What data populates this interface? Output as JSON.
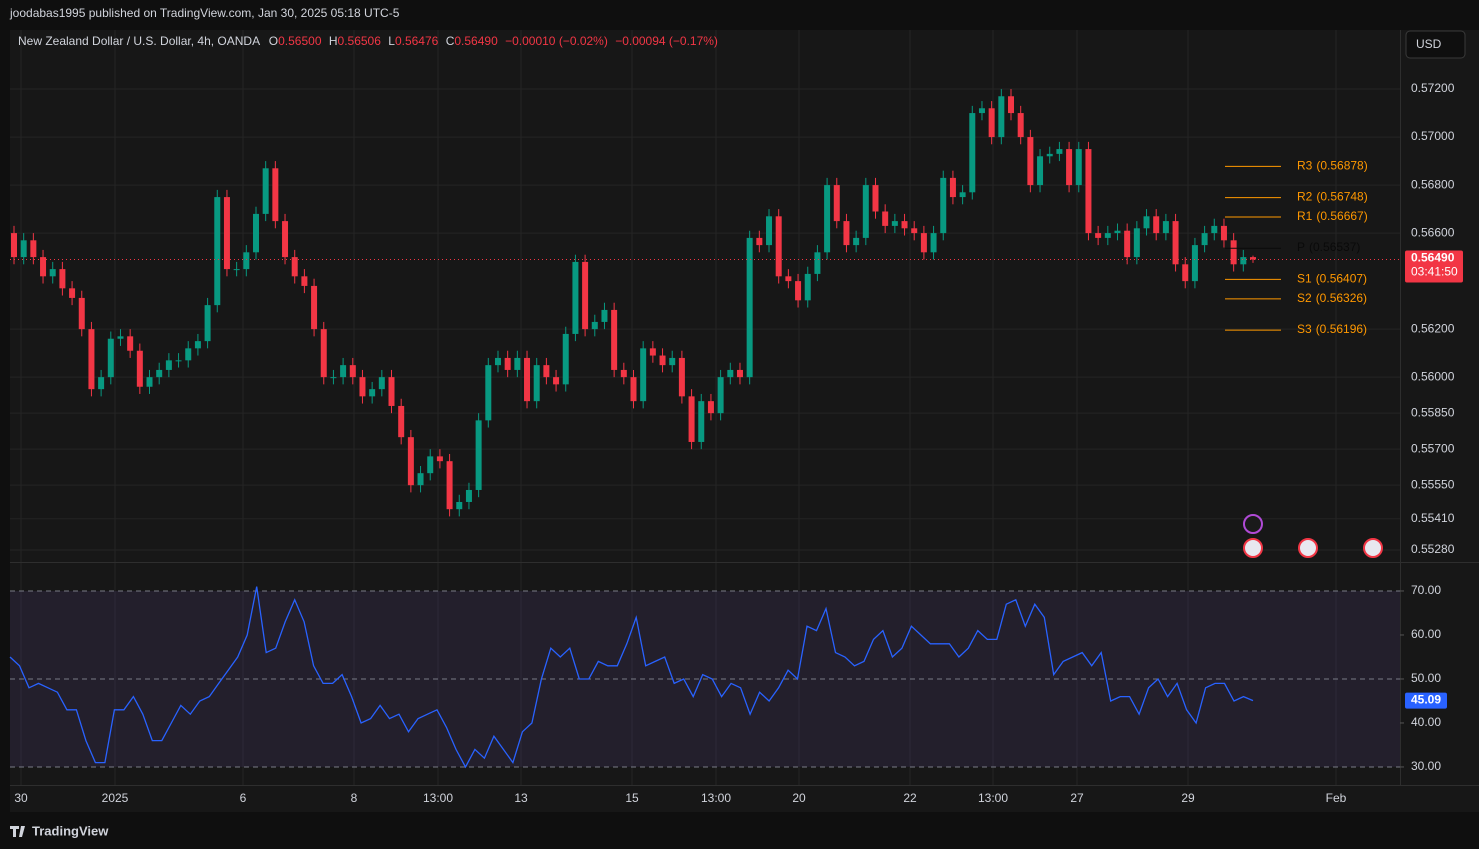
{
  "header": {
    "publisher": "joodabas1995 published on TradingView.com, Jan 30, 2025 05:18 UTC-5",
    "symbol": "New Zealand Dollar / U.S. Dollar, 4h, OANDA",
    "ohlc": [
      {
        "key": "O",
        "value": "0.56500"
      },
      {
        "key": "H",
        "value": "0.56506"
      },
      {
        "key": "L",
        "value": "0.56476"
      },
      {
        "key": "C",
        "value": "0.56490"
      }
    ],
    "change": "−0.00010 (−0.02%)",
    "change_total": "−0.00094 (−0.17%)"
  },
  "currency": "USD",
  "footer": "TradingView",
  "chart_data": [
    {
      "type": "candlestick",
      "up_color": "#089981",
      "down_color": "#f23645",
      "grid": true,
      "x_labels": [
        "30",
        "2025",
        "6",
        "8",
        "13:00",
        "13",
        "15",
        "13:00",
        "20",
        "22",
        "13:00",
        "27",
        "29",
        "Feb"
      ],
      "open": [
        0.566,
        0.565,
        0.5657,
        0.565,
        0.5642,
        0.5645,
        0.5637,
        0.5633,
        0.562,
        0.5595,
        0.56,
        0.5616,
        0.5617,
        0.5611,
        0.5596,
        0.56,
        0.5603,
        0.5607,
        0.5607,
        0.5612,
        0.5615,
        0.563,
        0.5675,
        0.5645,
        0.5645,
        0.5652,
        0.5668,
        0.5687,
        0.5665,
        0.565,
        0.5642,
        0.5638,
        0.562,
        0.56,
        0.56,
        0.5605,
        0.56,
        0.5592,
        0.5595,
        0.56,
        0.5588,
        0.5575,
        0.5555,
        0.556,
        0.5567,
        0.5565,
        0.5545,
        0.5548,
        0.5553,
        0.5582,
        0.5605,
        0.5608,
        0.5603,
        0.5608,
        0.559,
        0.5605,
        0.56,
        0.5597,
        0.5618,
        0.5648,
        0.562,
        0.5623,
        0.5628,
        0.5603,
        0.56,
        0.559,
        0.5612,
        0.5609,
        0.5605,
        0.5608,
        0.5592,
        0.5573,
        0.559,
        0.5585,
        0.56,
        0.5603,
        0.56,
        0.5658,
        0.5655,
        0.5667,
        0.5642,
        0.564,
        0.5632,
        0.5643,
        0.5652,
        0.568,
        0.5665,
        0.5655,
        0.5658,
        0.568,
        0.5669,
        0.5663,
        0.5665,
        0.5662,
        0.566,
        0.5652,
        0.566,
        0.5683,
        0.5675,
        0.5677,
        0.571,
        0.5712,
        0.57,
        0.5717,
        0.571,
        0.57,
        0.568,
        0.5692,
        0.5693,
        0.5695,
        0.568,
        0.5695,
        0.566,
        0.5658,
        0.566,
        0.5661,
        0.565,
        0.5662,
        0.5667,
        0.566,
        0.5665,
        0.5647,
        0.564,
        0.5655,
        0.566,
        0.5663,
        0.5657,
        0.5647,
        0.565
      ],
      "high": [
        0.5663,
        0.566,
        0.566,
        0.5653,
        0.5648,
        0.5648,
        0.564,
        0.5636,
        0.5623,
        0.5603,
        0.5619,
        0.562,
        0.562,
        0.5614,
        0.5603,
        0.5606,
        0.561,
        0.561,
        0.5615,
        0.5618,
        0.5633,
        0.5678,
        0.5678,
        0.5648,
        0.5655,
        0.5671,
        0.569,
        0.569,
        0.5668,
        0.5653,
        0.5645,
        0.5641,
        0.5623,
        0.5603,
        0.5608,
        0.5608,
        0.5603,
        0.5598,
        0.5603,
        0.5603,
        0.5591,
        0.5578,
        0.5563,
        0.557,
        0.557,
        0.5568,
        0.5551,
        0.5556,
        0.5585,
        0.5608,
        0.5611,
        0.5611,
        0.5611,
        0.5611,
        0.5608,
        0.5608,
        0.5603,
        0.5621,
        0.5651,
        0.5651,
        0.5626,
        0.5631,
        0.5631,
        0.5606,
        0.5603,
        0.5615,
        0.5615,
        0.5612,
        0.5611,
        0.5611,
        0.5595,
        0.5593,
        0.5593,
        0.5603,
        0.5606,
        0.5606,
        0.5661,
        0.5661,
        0.567,
        0.567,
        0.5645,
        0.5643,
        0.5646,
        0.5655,
        0.5683,
        0.5683,
        0.5668,
        0.5661,
        0.5683,
        0.5683,
        0.5672,
        0.5668,
        0.5668,
        0.5665,
        0.5663,
        0.5663,
        0.5686,
        0.5686,
        0.568,
        0.5713,
        0.5715,
        0.5715,
        0.572,
        0.572,
        0.5713,
        0.5703,
        0.5695,
        0.5696,
        0.5698,
        0.5698,
        0.5698,
        0.5698,
        0.5663,
        0.5663,
        0.5664,
        0.5664,
        0.5665,
        0.567,
        0.567,
        0.5668,
        0.5668,
        0.565,
        0.5658,
        0.5663,
        0.5666,
        0.5666,
        0.566,
        0.5653,
        0.56506
      ],
      "low": [
        0.5647,
        0.5647,
        0.5647,
        0.5639,
        0.5639,
        0.5634,
        0.563,
        0.5617,
        0.5592,
        0.5592,
        0.5597,
        0.5613,
        0.5608,
        0.5593,
        0.5593,
        0.5597,
        0.56,
        0.5604,
        0.5604,
        0.5609,
        0.5612,
        0.5627,
        0.5642,
        0.5642,
        0.5642,
        0.5649,
        0.5665,
        0.5662,
        0.5647,
        0.5639,
        0.5635,
        0.5617,
        0.5597,
        0.5597,
        0.5597,
        0.5597,
        0.5589,
        0.5589,
        0.5592,
        0.5585,
        0.5572,
        0.5552,
        0.5552,
        0.5557,
        0.5562,
        0.5542,
        0.5542,
        0.5545,
        0.555,
        0.5579,
        0.5602,
        0.56,
        0.56,
        0.5587,
        0.5587,
        0.5597,
        0.5594,
        0.5594,
        0.5615,
        0.5617,
        0.5617,
        0.562,
        0.56,
        0.5597,
        0.5587,
        0.5587,
        0.5606,
        0.5602,
        0.5602,
        0.5589,
        0.557,
        0.557,
        0.5582,
        0.5582,
        0.5597,
        0.5597,
        0.5597,
        0.5652,
        0.5652,
        0.5639,
        0.5637,
        0.5629,
        0.5629,
        0.564,
        0.5649,
        0.5662,
        0.5652,
        0.5652,
        0.5655,
        0.5666,
        0.566,
        0.566,
        0.5659,
        0.5657,
        0.5649,
        0.5649,
        0.5657,
        0.5672,
        0.5672,
        0.5674,
        0.5707,
        0.5697,
        0.5697,
        0.5707,
        0.5697,
        0.5677,
        0.5677,
        0.5689,
        0.569,
        0.5677,
        0.5677,
        0.5657,
        0.5655,
        0.5655,
        0.5657,
        0.5647,
        0.5647,
        0.5659,
        0.5657,
        0.5657,
        0.5644,
        0.5637,
        0.5637,
        0.5652,
        0.5657,
        0.5654,
        0.5644,
        0.5644,
        0.56476
      ],
      "close": [
        0.565,
        0.5657,
        0.565,
        0.5642,
        0.5645,
        0.5637,
        0.5633,
        0.562,
        0.5595,
        0.56,
        0.5616,
        0.5617,
        0.5611,
        0.5596,
        0.56,
        0.5603,
        0.5607,
        0.5607,
        0.5612,
        0.5615,
        0.563,
        0.5675,
        0.5645,
        0.5645,
        0.5652,
        0.5668,
        0.5687,
        0.5665,
        0.565,
        0.5642,
        0.5638,
        0.562,
        0.56,
        0.56,
        0.5605,
        0.56,
        0.5592,
        0.5595,
        0.56,
        0.5588,
        0.5575,
        0.5555,
        0.556,
        0.5567,
        0.5565,
        0.5545,
        0.5548,
        0.5553,
        0.5582,
        0.5605,
        0.5608,
        0.5603,
        0.5608,
        0.559,
        0.5605,
        0.56,
        0.5597,
        0.5618,
        0.5648,
        0.562,
        0.5623,
        0.5628,
        0.5603,
        0.56,
        0.559,
        0.5612,
        0.5609,
        0.5605,
        0.5608,
        0.5592,
        0.5573,
        0.559,
        0.5585,
        0.56,
        0.5603,
        0.56,
        0.5658,
        0.5655,
        0.5667,
        0.5642,
        0.564,
        0.5632,
        0.5643,
        0.5652,
        0.568,
        0.5665,
        0.5655,
        0.5658,
        0.568,
        0.5669,
        0.5663,
        0.5665,
        0.5662,
        0.566,
        0.5652,
        0.566,
        0.5683,
        0.5675,
        0.5677,
        0.571,
        0.5712,
        0.57,
        0.5717,
        0.571,
        0.57,
        0.568,
        0.5692,
        0.5693,
        0.5695,
        0.568,
        0.5695,
        0.566,
        0.5658,
        0.566,
        0.5661,
        0.565,
        0.5662,
        0.5667,
        0.566,
        0.5665,
        0.5647,
        0.564,
        0.5655,
        0.566,
        0.5663,
        0.5657,
        0.5647,
        0.565,
        0.5649
      ],
      "ylim": [
        0.5523,
        0.57446
      ],
      "yticks": [
        {
          "value": 0.572,
          "label": "0.57200"
        },
        {
          "value": 0.57,
          "label": "0.57000"
        },
        {
          "value": 0.568,
          "label": "0.56800"
        },
        {
          "value": 0.566,
          "label": "0.56600"
        },
        {
          "value": 0.562,
          "label": "0.56200"
        },
        {
          "value": 0.56,
          "label": "0.56000"
        },
        {
          "value": 0.5585,
          "label": "0.55850"
        },
        {
          "value": 0.557,
          "label": "0.55700"
        },
        {
          "value": 0.5555,
          "label": "0.55550"
        },
        {
          "value": 0.5541,
          "label": "0.55410"
        },
        {
          "value": 0.5528,
          "label": "0.55280"
        }
      ],
      "last_price": {
        "value": 0.5649,
        "label": "0.56490"
      },
      "countdown": "03:41:50",
      "pivots": [
        {
          "name": "R3",
          "value": 0.56878,
          "label": "(0.56878)",
          "color": "#ff9800"
        },
        {
          "name": "R2",
          "value": 0.56748,
          "label": "(0.56748)",
          "color": "#ff9800"
        },
        {
          "name": "R1",
          "value": 0.56667,
          "label": "(0.56667)",
          "color": "#ff9800"
        },
        {
          "name": "P",
          "value": 0.56537,
          "label": "(0.56537)",
          "color": "#0a0a0a"
        },
        {
          "name": "S1",
          "value": 0.56407,
          "label": "(0.56407)",
          "color": "#ff9800"
        },
        {
          "name": "S2",
          "value": 0.56326,
          "label": "(0.56326)",
          "color": "#ff9800"
        },
        {
          "name": "S3",
          "value": 0.56196,
          "label": "(0.56196)",
          "color": "#ff9800"
        }
      ]
    },
    {
      "type": "line",
      "color": "#2962ff",
      "values": [
        55,
        53,
        48,
        49,
        48,
        47,
        43,
        43,
        36,
        31,
        31,
        43,
        43,
        46,
        42,
        36,
        36,
        40,
        44,
        42,
        45,
        46,
        49,
        52,
        55,
        60,
        71,
        56,
        57,
        63,
        68,
        63,
        53,
        49,
        49,
        51,
        46,
        40,
        41,
        44,
        41,
        42,
        38,
        41,
        42,
        43,
        39,
        34,
        30,
        34,
        32,
        37,
        34,
        31,
        38,
        40,
        50,
        57,
        55,
        57,
        50,
        50,
        54,
        53,
        53,
        58,
        64,
        53,
        54,
        55,
        49,
        50,
        46,
        51,
        50,
        46,
        49,
        48,
        42,
        47,
        45,
        48,
        52,
        50,
        62,
        61,
        66,
        56,
        55,
        53,
        54,
        59,
        61,
        55,
        57,
        62,
        60,
        58,
        58,
        58,
        55,
        57,
        61,
        59,
        59,
        67,
        68,
        62,
        67,
        64,
        51,
        54,
        55,
        56,
        53,
        56,
        45,
        46,
        46,
        42,
        48,
        50,
        46,
        49,
        43,
        40,
        48,
        49,
        49,
        45,
        46,
        45.09
      ],
      "ylim": [
        25.9,
        76.36
      ],
      "yticks": [
        {
          "value": 70,
          "label": "70.00"
        },
        {
          "value": 60,
          "label": "60.00"
        },
        {
          "value": 50,
          "label": "50.00"
        },
        {
          "value": 40,
          "label": "40.00"
        },
        {
          "value": 30,
          "label": "30.00"
        }
      ],
      "bands": [
        70,
        50,
        30
      ]
    }
  ]
}
